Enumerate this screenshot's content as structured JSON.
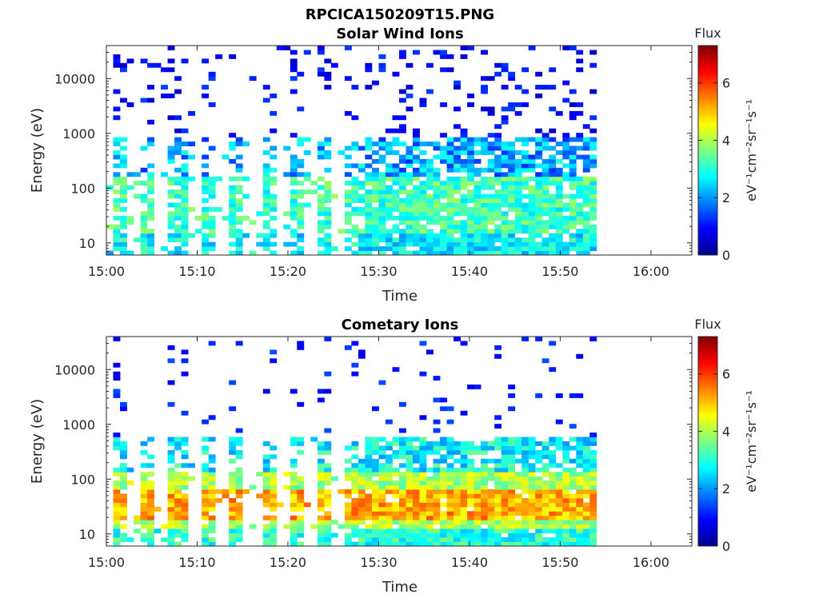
{
  "figure_title": "RPCICA150209T15.PNG",
  "chart_data": [
    {
      "type": "heatmap",
      "title": "Solar Wind Ions",
      "xlabel": "Time",
      "ylabel": "Energy (eV)",
      "x_ticks": [
        "15:00",
        "15:10",
        "15:20",
        "15:30",
        "15:40",
        "15:50",
        "16:00"
      ],
      "y_ticks": [
        "10",
        "100",
        "1000",
        "10000"
      ],
      "y_scale": "log",
      "ylim": [
        6,
        40000
      ],
      "colorbar": {
        "title": "Flux",
        "label": "eV⁻¹cm⁻²sr⁻¹s⁻¹",
        "ticks": [
          "0",
          "2",
          "4",
          "6"
        ],
        "range": [
          0,
          7.3
        ],
        "colormap": "jet"
      },
      "data_time_range": [
        "15:00",
        "15:53"
      ],
      "description_pattern": "sparse low-flux blue streaks at high energy; green/cyan bands between 10 and 100 eV; broadening after 15:25"
    },
    {
      "type": "heatmap",
      "title": "Cometary Ions",
      "xlabel": "Time",
      "ylabel": "Energy (eV)",
      "x_ticks": [
        "15:00",
        "15:10",
        "15:20",
        "15:30",
        "15:40",
        "15:50",
        "16:00"
      ],
      "y_ticks": [
        "10",
        "100",
        "1000",
        "10000"
      ],
      "y_scale": "log",
      "ylim": [
        6,
        40000
      ],
      "colorbar": {
        "title": "Flux",
        "label": "eV⁻¹cm⁻²sr⁻¹s⁻¹",
        "ticks": [
          "0",
          "2",
          "4",
          "6"
        ],
        "range": [
          0,
          7.3
        ],
        "colormap": "jet"
      },
      "data_time_range": [
        "15:00",
        "15:53"
      ],
      "description_pattern": "strong orange/yellow flux between 10 and 100 eV, peak near 20-40 eV; periodic bursts until 15:25 then continuous"
    }
  ]
}
